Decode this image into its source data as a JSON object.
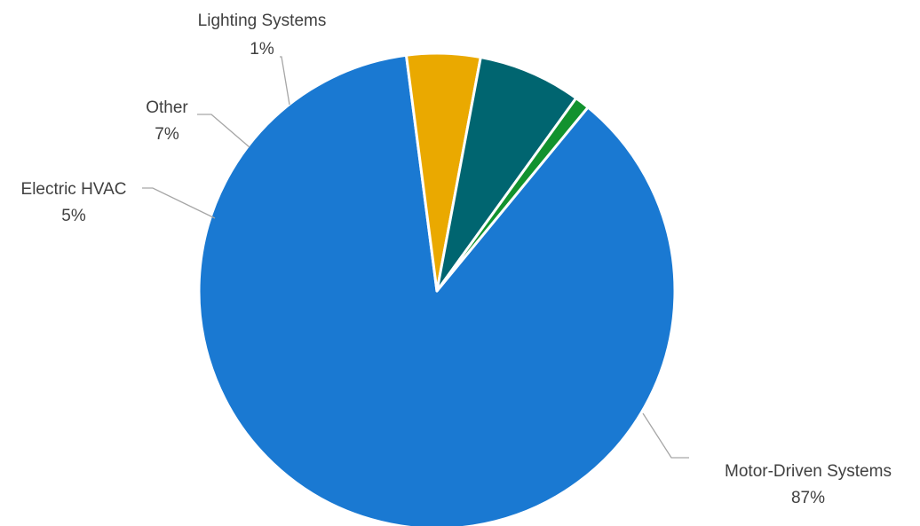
{
  "chart_data": {
    "type": "pie",
    "title": "",
    "slices": [
      {
        "name": "Motor-Driven Systems",
        "value": 87,
        "label": "87%",
        "color": "#1a79d2"
      },
      {
        "name": "Electric HVAC",
        "value": 5,
        "label": "5%",
        "color": "#eaa900"
      },
      {
        "name": "Other",
        "value": 7,
        "label": "7%",
        "color": "#006570"
      },
      {
        "name": "Lighting Systems",
        "value": 1,
        "label": "1%",
        "color": "#12922e"
      }
    ],
    "legend": "none",
    "labels": "outside-with-leader-lines"
  }
}
